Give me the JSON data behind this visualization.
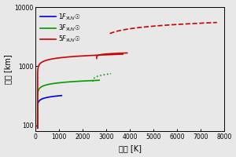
{
  "title": "",
  "xlabel": "温度 [K]",
  "ylabel": "高度 [km]",
  "xlim": [
    0,
    8000
  ],
  "ylim_log": [
    80,
    10000
  ],
  "xticks": [
    0,
    1000,
    2000,
    3000,
    4000,
    5000,
    6000,
    7000,
    8000
  ],
  "yticks": [
    100,
    1000,
    10000
  ],
  "background_color": "#e8e8e8",
  "line1_color": "#0000dd",
  "line2_color": "#009900",
  "line3_color": "#cc0000",
  "figsize": [
    3.0,
    2.0
  ],
  "dpi": 100,
  "T_base": 100,
  "curve1_alt_solid_max": 320,
  "curve1_T_solid_max": 1100,
  "curve2_alt_solid_max": 580,
  "curve2_T_solid_max": 2700,
  "curve2_alt_dot_max": 750,
  "curve2_T_dot_max": 3200,
  "curve3_alt_solid_max": 1600,
  "curve3_T_solid_max": 3700,
  "curve3_alt_dash_max": 5500,
  "curve3_T_dash_max": 7700
}
